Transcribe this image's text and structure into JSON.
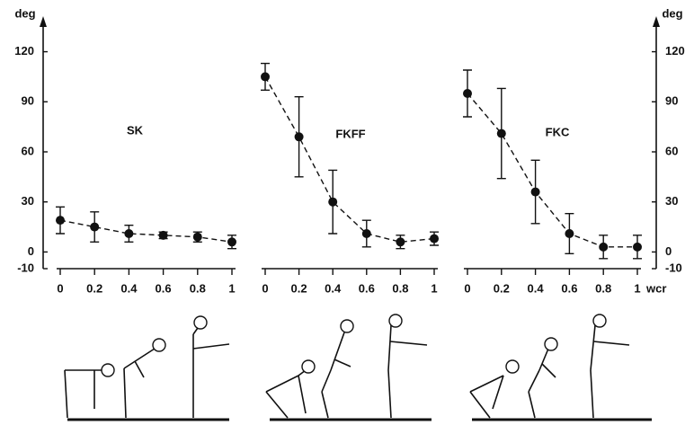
{
  "chart_data": [
    {
      "type": "line",
      "title": "SK",
      "x": [
        0,
        0.2,
        0.4,
        0.6,
        0.8,
        1
      ],
      "xticks": [
        0,
        0.2,
        0.4,
        0.6,
        0.8,
        1
      ],
      "xlim": [
        0,
        1
      ],
      "ylabel": "deg",
      "y_axis": "left",
      "ylim": [
        -10,
        130
      ],
      "yticks": [
        -10,
        0,
        30,
        60,
        90,
        120
      ],
      "line_style": "dashed",
      "series": [
        {
          "color": "#111111",
          "values": [
            19,
            15,
            11,
            10,
            9,
            6
          ],
          "errors": [
            8,
            9,
            5,
            2,
            3,
            4
          ]
        }
      ]
    },
    {
      "type": "line",
      "title": "FKFF",
      "x": [
        0,
        0.2,
        0.4,
        0.6,
        0.8,
        1
      ],
      "xticks": [
        0,
        0.2,
        0.4,
        0.6,
        0.8,
        1
      ],
      "xlim": [
        0,
        1
      ],
      "ylim": [
        -10,
        130
      ],
      "line_style": "dashed",
      "series": [
        {
          "color": "#111111",
          "values": [
            105,
            69,
            30,
            11,
            6,
            8
          ],
          "errors": [
            8,
            24,
            19,
            8,
            4,
            4
          ]
        }
      ]
    },
    {
      "type": "line",
      "title": "FKC",
      "x": [
        0,
        0.2,
        0.4,
        0.6,
        0.8,
        1
      ],
      "xticks": [
        0,
        0.2,
        0.4,
        0.6,
        0.8,
        1
      ],
      "xlim": [
        0,
        1
      ],
      "xlabel": "wcr",
      "ylabel": "deg",
      "y_axis": "right",
      "ylim": [
        -10,
        130
      ],
      "yticks": [
        -10,
        0,
        30,
        60,
        90,
        120
      ],
      "line_style": "dashed",
      "series": [
        {
          "color": "#111111",
          "values": [
            95,
            71,
            36,
            11,
            3,
            3
          ],
          "errors": [
            14,
            27,
            19,
            12,
            7,
            7
          ]
        }
      ]
    }
  ]
}
